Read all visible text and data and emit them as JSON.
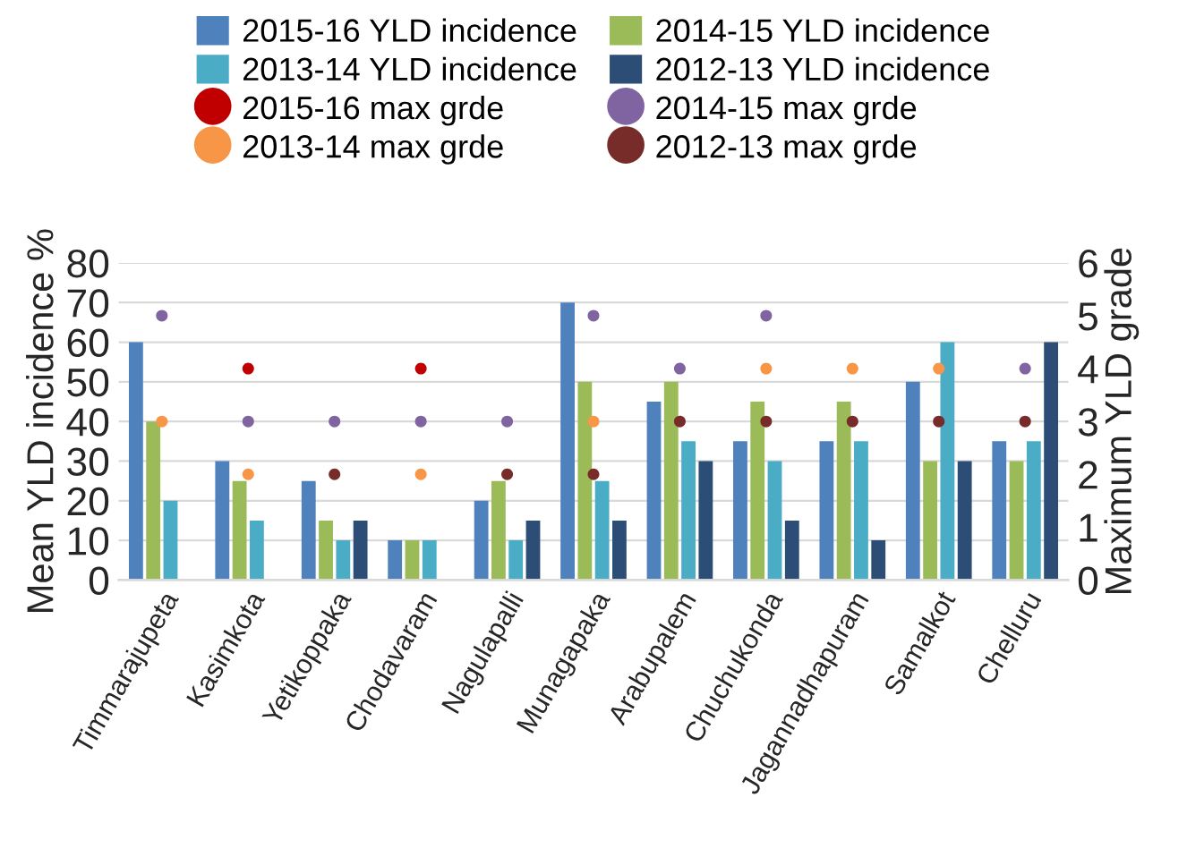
{
  "chart_data": {
    "type": "bar",
    "categories": [
      "Timmarajupeta",
      "Kasimkota",
      "Yetikoppaka",
      "Chodavaram",
      "Nagulapalli",
      "Munagapaka",
      "Arabupalem",
      "Chuchukonda",
      "Jagannadhapuram",
      "Samalkot",
      "Chelluru"
    ],
    "series": [
      {
        "name": "2015-16 YLD incidence",
        "color": "#4f81bd",
        "values": [
          60,
          30,
          25,
          10,
          20,
          70,
          45,
          35,
          35,
          50,
          35
        ]
      },
      {
        "name": "2014-15 YLD incidence",
        "color": "#9bbb59",
        "values": [
          40,
          25,
          15,
          10,
          25,
          50,
          50,
          45,
          45,
          30,
          30
        ]
      },
      {
        "name": "2013-14 YLD incidence",
        "color": "#4bacc6",
        "values": [
          20,
          15,
          10,
          10,
          10,
          25,
          35,
          30,
          35,
          60,
          35
        ]
      },
      {
        "name": "2012-13 YLD incidence",
        "color": "#2c4d75",
        "values": [
          null,
          null,
          15,
          null,
          15,
          15,
          30,
          15,
          10,
          30,
          60
        ]
      },
      {
        "name": "2015-16 max grde",
        "type": "scatter",
        "axis": "y2",
        "color": "#c00000",
        "values": [
          null,
          4,
          null,
          4,
          null,
          null,
          null,
          null,
          null,
          null,
          null
        ]
      },
      {
        "name": "2014-15 max grde",
        "type": "scatter",
        "axis": "y2",
        "color": "#8064a2",
        "values": [
          5,
          3,
          3,
          3,
          3,
          5,
          4,
          5,
          null,
          null,
          4
        ]
      },
      {
        "name": "2013-14 max grde",
        "type": "scatter",
        "axis": "y2",
        "color": "#f79646",
        "values": [
          3,
          2,
          null,
          2,
          null,
          3,
          null,
          4,
          4,
          4,
          null
        ]
      },
      {
        "name": "2012-13 max grde",
        "type": "scatter",
        "axis": "y2",
        "color": "#772c2a",
        "values": [
          null,
          null,
          2,
          null,
          2,
          2,
          3,
          3,
          3,
          3,
          3
        ]
      }
    ],
    "ylabel": "Mean YLD incidence %",
    "y2label": "Maximum YLD grade",
    "ylim": [
      0,
      80
    ],
    "yticks": [
      0,
      10,
      20,
      30,
      40,
      50,
      60,
      70,
      80
    ],
    "y2lim": [
      0,
      6
    ],
    "y2ticks": [
      0,
      1,
      2,
      3,
      4,
      5,
      6
    ],
    "grid": "y",
    "legend": "top",
    "marker": "circle"
  }
}
